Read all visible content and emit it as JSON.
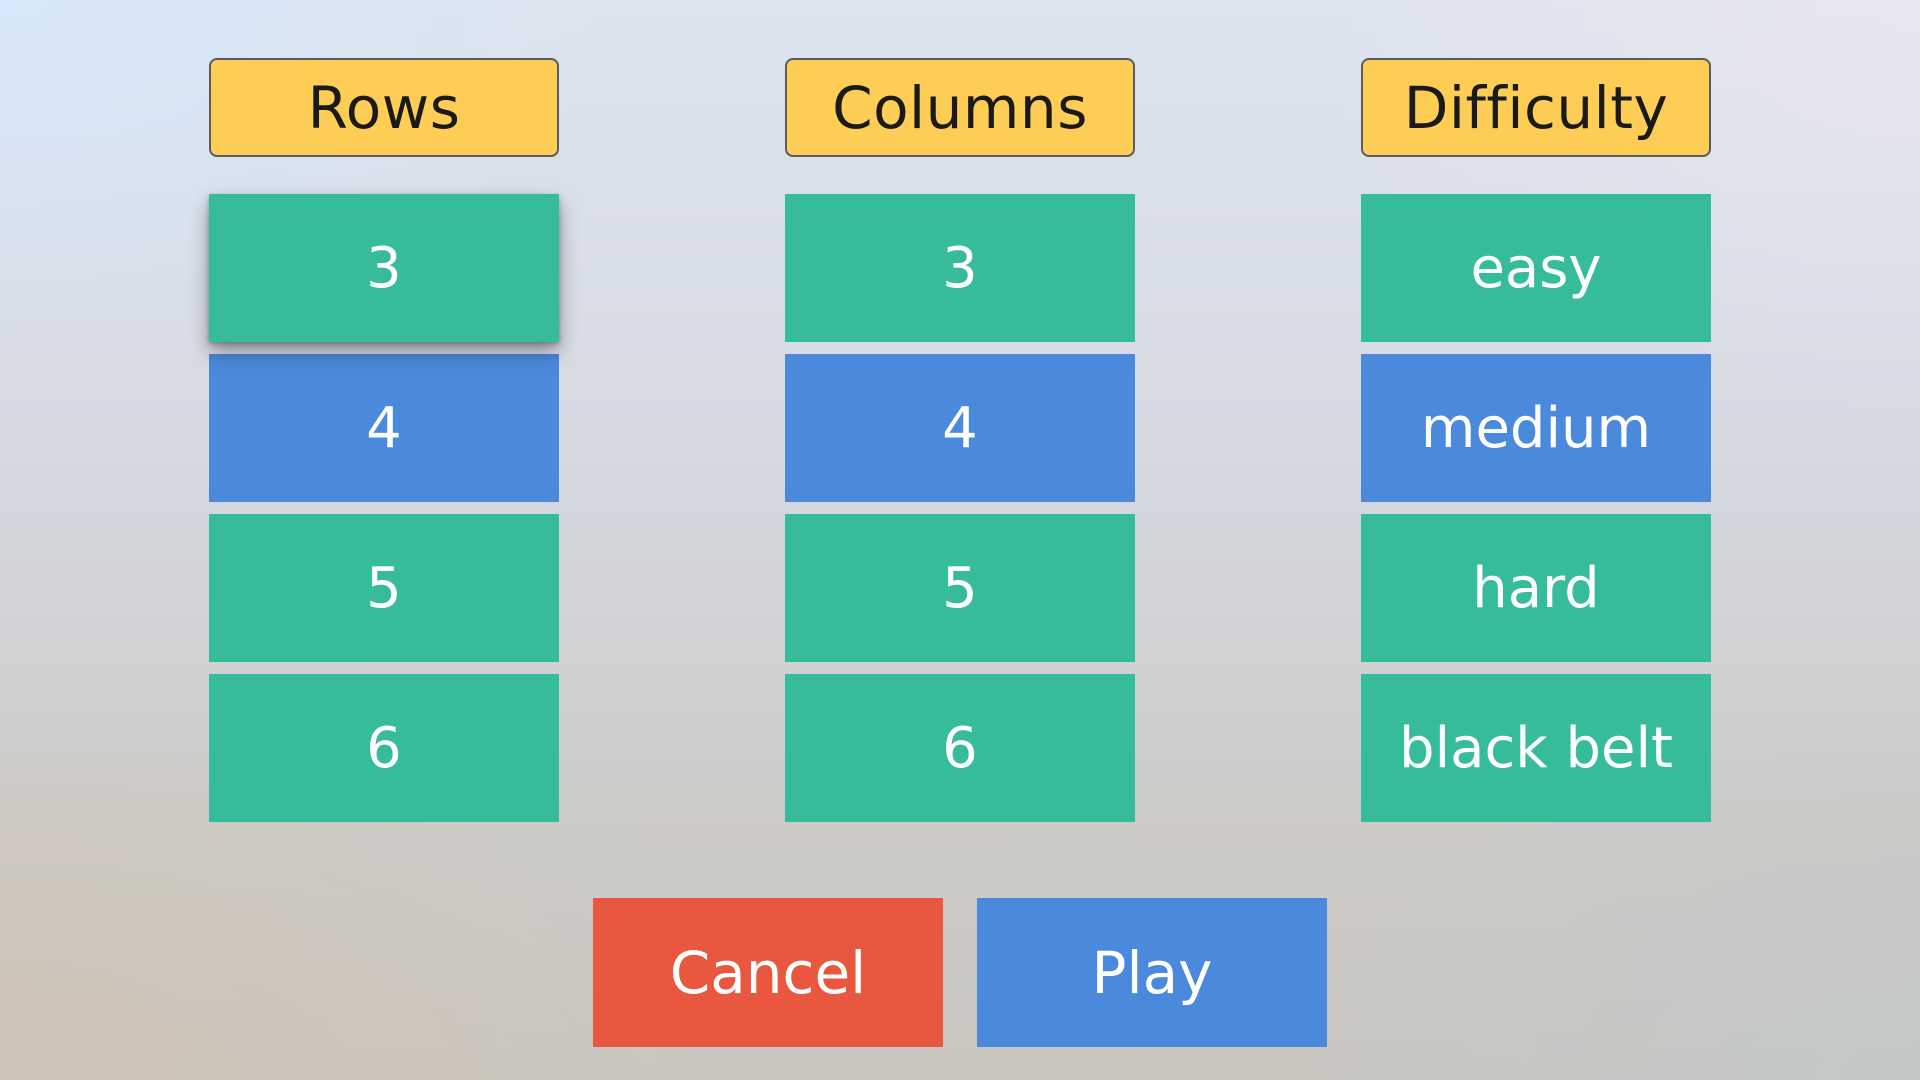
{
  "columns": [
    {
      "header": "Rows",
      "options": [
        "3",
        "4",
        "5",
        "6"
      ],
      "selected": "4",
      "highlighted": "3"
    },
    {
      "header": "Columns",
      "options": [
        "3",
        "4",
        "5",
        "6"
      ],
      "selected": "4"
    },
    {
      "header": "Difficulty",
      "options": [
        "easy",
        "medium",
        "hard",
        "black belt"
      ],
      "selected": "medium"
    }
  ],
  "actions": {
    "cancel_label": "Cancel",
    "play_label": "Play"
  },
  "colors": {
    "header_bg": "#fecd55",
    "option_bg": "#37bc9b",
    "selected_bg": "#4a89dc",
    "cancel_bg": "#e9573f",
    "play_bg": "#4a89dc"
  }
}
